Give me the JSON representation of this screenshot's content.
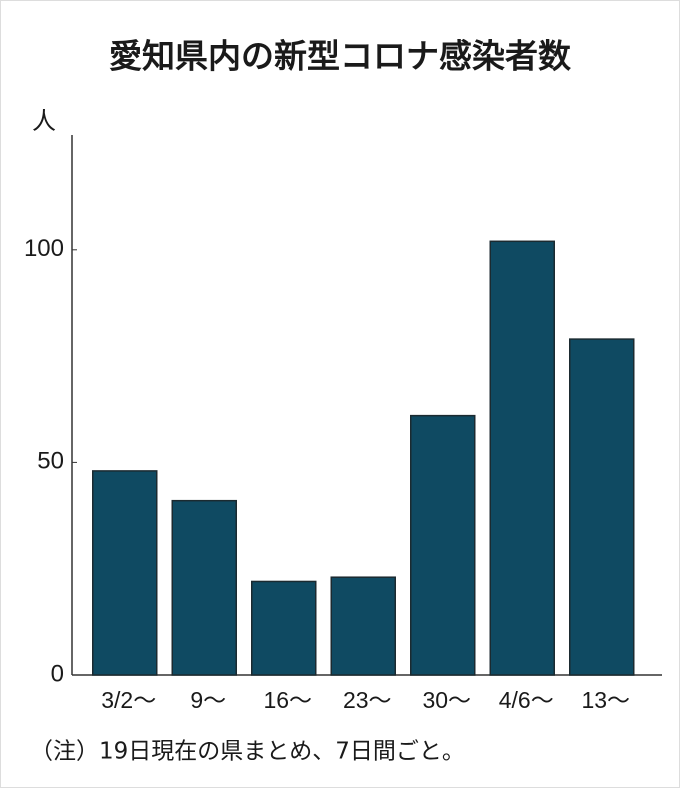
{
  "chart_data": {
    "type": "bar",
    "title": "愛知県内の新型コロナ感染者数",
    "y_unit": "人",
    "categories": [
      "3/2〜",
      "9〜",
      "16〜",
      "23〜",
      "30〜",
      "4/6〜",
      "13〜"
    ],
    "values": [
      48,
      41,
      22,
      23,
      61,
      102,
      79
    ],
    "color": "#0f4a62",
    "ylim": [
      0,
      127
    ],
    "yticks": [
      0,
      50,
      100
    ],
    "grid": false,
    "note": "（注）19日現在の県まとめ、7日間ごと。"
  }
}
